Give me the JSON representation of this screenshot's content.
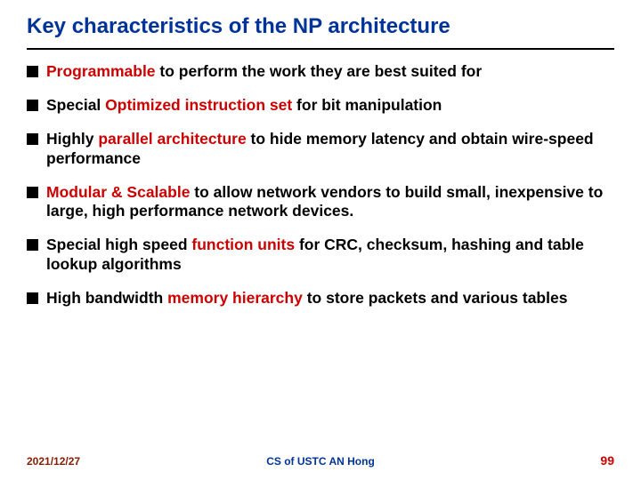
{
  "title": "Key characteristics of the NP architecture",
  "title_color": "#003399",
  "keyword_color": "#cc0000",
  "bullets": [
    {
      "prefix": "",
      "keyword": "Programmable",
      "suffix": " to perform the work they are best suited for"
    },
    {
      "prefix": "Special ",
      "keyword": "Optimized instruction set",
      "suffix": " for bit manipulation"
    },
    {
      "prefix": "Highly ",
      "keyword": "parallel architecture",
      "suffix": " to hide memory latency and obtain wire-speed performance"
    },
    {
      "prefix": "",
      "keyword": "Modular & Scalable",
      "suffix": " to allow network vendors to build small, inexpensive to large, high performance network devices."
    },
    {
      "prefix": "Special high speed ",
      "keyword": "function units",
      "suffix": " for CRC, checksum, hashing and table lookup algorithms"
    },
    {
      "prefix": "High bandwidth ",
      "keyword": "memory hierarchy",
      "suffix": " to store packets and various tables"
    }
  ],
  "footer": {
    "date": "2021/12/27",
    "center": "CS of USTC AN Hong",
    "page": "99"
  }
}
